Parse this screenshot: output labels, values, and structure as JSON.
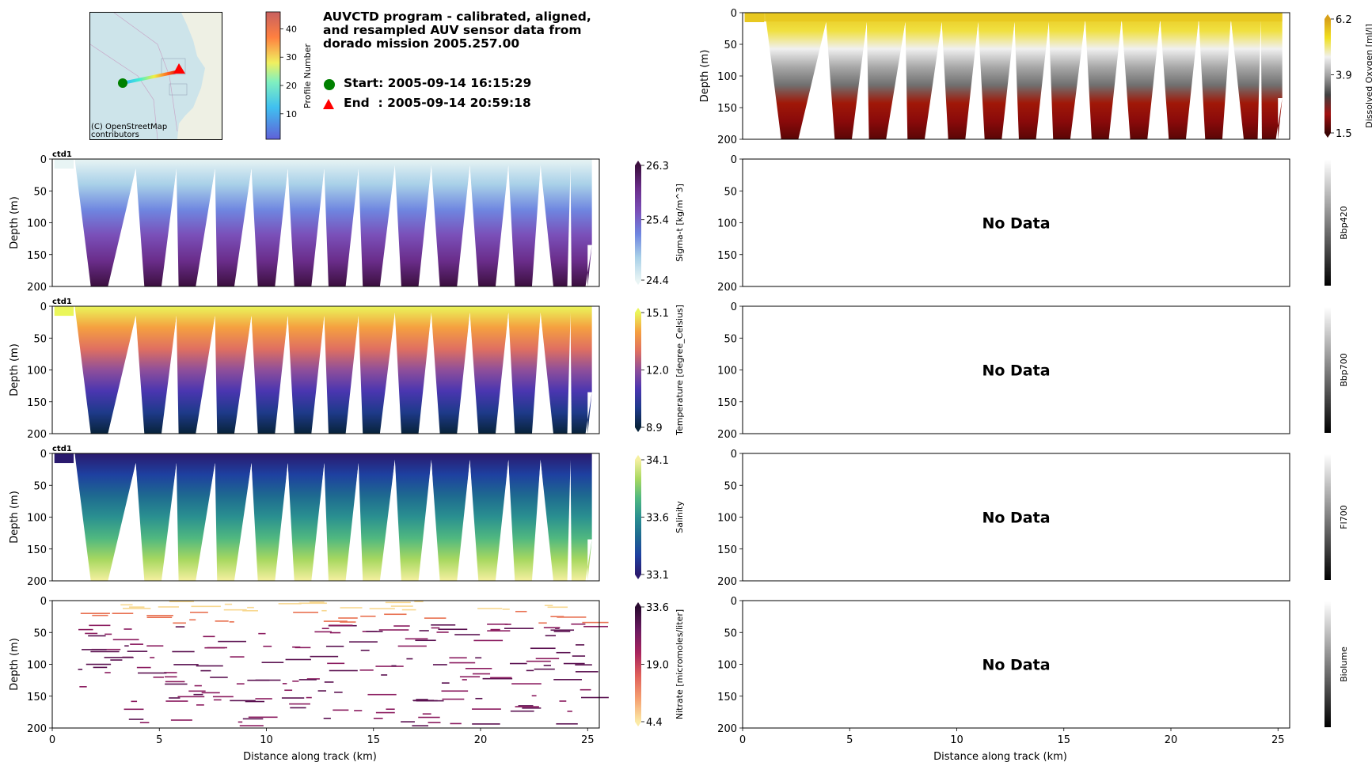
{
  "header": {
    "title_lines": [
      "AUVCTD program - calibrated, aligned,",
      "and resampled AUV sensor data from",
      "dorado mission 2005.257.00"
    ],
    "start_label": "Start: 2005-09-14 16:15:29",
    "end_label": "End  : 2005-09-14 20:59:18",
    "start_marker_color": "#008000",
    "end_marker_color": "#ff0000"
  },
  "map": {
    "attribution_lines": [
      "(C) OpenStreetMap",
      "contributors"
    ],
    "colorbar": {
      "label": "Profile Number",
      "ticks": [
        "10",
        "20",
        "30",
        "40"
      ],
      "range": [
        1,
        46
      ]
    }
  },
  "chart_data": [
    {
      "type": "heatmap",
      "name": "sigma-t",
      "annotation": "ctd1",
      "ylabel": "Depth (m)",
      "xlabel": "",
      "xlim": [
        0,
        25.5
      ],
      "ylim": [
        200,
        0
      ],
      "yticks": [
        "0",
        "50",
        "100",
        "150",
        "200"
      ],
      "colorbar": {
        "label": "Sigma-t [kg/m^3]",
        "ticks": [
          "26.3",
          "25.4",
          "24.4"
        ],
        "range": [
          24.4,
          26.3
        ],
        "colors": [
          "#e8f4f4",
          "#a8d0e8",
          "#6f86e0",
          "#7a4fb8",
          "#6a2d8a",
          "#3b0f3e"
        ]
      }
    },
    {
      "type": "heatmap",
      "name": "temperature",
      "annotation": "ctd1",
      "ylabel": "Depth (m)",
      "xlabel": "",
      "xlim": [
        0,
        25.5
      ],
      "ylim": [
        200,
        0
      ],
      "yticks": [
        "0",
        "50",
        "100",
        "150",
        "200"
      ],
      "colorbar": {
        "label": "Temperature [degree_Celsius]",
        "ticks": [
          "15.1",
          "12.0",
          "8.9"
        ],
        "range": [
          8.9,
          15.1
        ],
        "colors": [
          "#08233a",
          "#1e3a8a",
          "#4a36b0",
          "#8f4f9a",
          "#e07060",
          "#f5a040",
          "#eaf65a"
        ]
      }
    },
    {
      "type": "heatmap",
      "name": "salinity",
      "annotation": "ctd1",
      "ylabel": "Depth (m)",
      "xlabel": "",
      "xlim": [
        0,
        25.5
      ],
      "ylim": [
        200,
        0
      ],
      "yticks": [
        "0",
        "50",
        "100",
        "150",
        "200"
      ],
      "colorbar": {
        "label": "Salinity",
        "ticks": [
          "34.1",
          "33.6",
          "33.1"
        ],
        "range": [
          33.1,
          34.1
        ],
        "colors": [
          "#2a1a6e",
          "#1e40a0",
          "#1e6a90",
          "#2a9090",
          "#50b880",
          "#a8d860",
          "#f5f0a0"
        ]
      }
    },
    {
      "type": "heatmap",
      "name": "nitrate",
      "annotation": "",
      "ylabel": "Depth (m)",
      "xlabel": "Distance along track (km)",
      "xlim": [
        0,
        25.5
      ],
      "ylim": [
        200,
        0
      ],
      "xticks": [
        "0",
        "5",
        "10",
        "15",
        "20",
        "25"
      ],
      "yticks": [
        "0",
        "50",
        "100",
        "150",
        "200"
      ],
      "colorbar": {
        "label": "Nitrate [micromoles/liter]",
        "ticks": [
          "33.6",
          "19.0",
          "4.4"
        ],
        "range": [
          4.4,
          33.6
        ],
        "colors": [
          "#fbeaa6",
          "#f5a070",
          "#e0605a",
          "#a8245e",
          "#6a1a60",
          "#2a0a30"
        ]
      }
    },
    {
      "type": "heatmap",
      "name": "dissolved-oxygen",
      "annotation": "",
      "ylabel": "Depth (m)",
      "xlabel": "",
      "xlim": [
        0,
        25.5
      ],
      "ylim": [
        200,
        0
      ],
      "yticks": [
        "0",
        "50",
        "100",
        "150",
        "200"
      ],
      "colorbar": {
        "label": "Dissolved Oxygen [ml/l]",
        "ticks": [
          "6.2",
          "3.9",
          "1.5"
        ],
        "range": [
          1.5,
          6.2
        ],
        "colors": [
          "#3a0404",
          "#a01010",
          "#404040",
          "#a0a0a0",
          "#f0f0f0",
          "#f0e020",
          "#d8a018"
        ]
      }
    },
    {
      "type": "heatmap",
      "name": "bbp420",
      "annotation": "No Data",
      "ylabel": "",
      "xlabel": "",
      "xlim": [
        0,
        25.5
      ],
      "ylim": [
        200,
        0
      ],
      "yticks": [
        "0",
        "50",
        "100",
        "150",
        "200"
      ],
      "colorbar": {
        "label": "Bbp420",
        "ticks": []
      }
    },
    {
      "type": "heatmap",
      "name": "bbp700",
      "annotation": "No Data",
      "ylabel": "",
      "xlabel": "",
      "xlim": [
        0,
        25.5
      ],
      "ylim": [
        200,
        0
      ],
      "yticks": [
        "0",
        "50",
        "100",
        "150",
        "200"
      ],
      "colorbar": {
        "label": "Bbp700",
        "ticks": []
      }
    },
    {
      "type": "heatmap",
      "name": "fl700",
      "annotation": "No Data",
      "ylabel": "",
      "xlabel": "",
      "xlim": [
        0,
        25.5
      ],
      "ylim": [
        200,
        0
      ],
      "yticks": [
        "0",
        "50",
        "100",
        "150",
        "200"
      ],
      "colorbar": {
        "label": "Fl700",
        "ticks": []
      }
    },
    {
      "type": "heatmap",
      "name": "biolume",
      "annotation": "No Data",
      "ylabel": "",
      "xlabel": "Distance along track (km)",
      "xlim": [
        0,
        25.5
      ],
      "ylim": [
        200,
        0
      ],
      "xticks": [
        "0",
        "5",
        "10",
        "15",
        "20",
        "25"
      ],
      "yticks": [
        "0",
        "50",
        "100",
        "150",
        "200"
      ],
      "colorbar": {
        "label": "Biolume",
        "ticks": []
      }
    }
  ],
  "profile_apex_km": [
    1.0,
    2.2,
    3.9,
    4.7,
    5.8,
    6.3,
    7.6,
    8.1,
    9.3,
    10.0,
    11.0,
    11.7,
    12.7,
    13.3,
    14.3,
    14.9,
    16.0,
    16.7,
    17.7,
    18.5,
    19.5,
    20.3,
    21.3,
    22.0,
    22.8,
    23.8,
    24.2,
    24.5,
    25.2
  ],
  "profile_min_depth_m": [
    15,
    35,
    15,
    40,
    15,
    40,
    15,
    40,
    15,
    40,
    15,
    40,
    15,
    40,
    15,
    40,
    10,
    40,
    10,
    40,
    10,
    40,
    10,
    40,
    10,
    40,
    10,
    130,
    135
  ]
}
